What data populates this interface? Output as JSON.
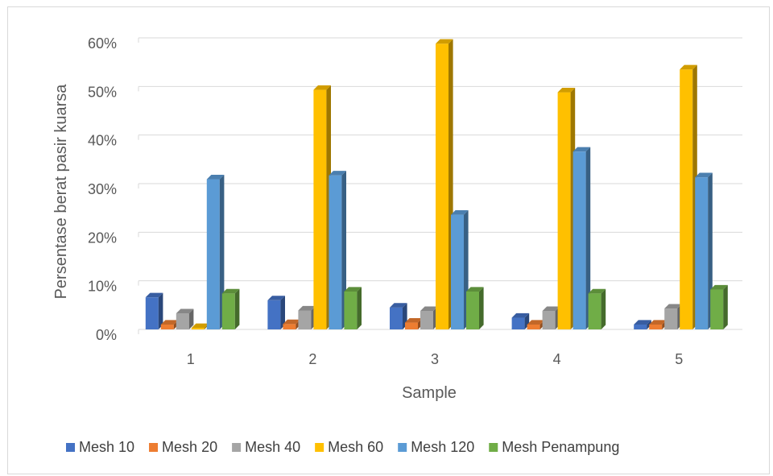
{
  "chart_data": {
    "type": "bar",
    "style": "3d-clustered-column",
    "title": "",
    "xlabel": "Sample",
    "ylabel": "Persentase berat pasir kuarsa",
    "categories": [
      "1",
      "2",
      "3",
      "4",
      "5"
    ],
    "ylim": [
      0,
      60
    ],
    "yticks": [
      "0%",
      "10%",
      "20%",
      "30%",
      "40%",
      "50%",
      "60%"
    ],
    "grid": true,
    "legend_position": "bottom",
    "series": [
      {
        "name": "Mesh 10",
        "color": "#4472c4",
        "values": [
          6.6,
          6.0,
          4.5,
          2.4,
          1.0
        ]
      },
      {
        "name": "Mesh 20",
        "color": "#ed7d31",
        "values": [
          1.0,
          1.1,
          1.4,
          1.0,
          1.0
        ]
      },
      {
        "name": "Mesh 40",
        "color": "#a5a5a5",
        "values": [
          3.3,
          3.9,
          3.8,
          3.8,
          4.3
        ]
      },
      {
        "name": "Mesh 60",
        "color": "#ffc000",
        "values": [
          0.3,
          49.3,
          58.8,
          48.8,
          53.5
        ]
      },
      {
        "name": "Mesh 120",
        "color": "#5b9bd5",
        "values": [
          30.9,
          31.7,
          23.6,
          36.6,
          31.3
        ]
      },
      {
        "name": "Mesh Penampung",
        "color": "#70ad47",
        "values": [
          7.4,
          7.8,
          7.8,
          7.4,
          8.2
        ]
      }
    ]
  }
}
